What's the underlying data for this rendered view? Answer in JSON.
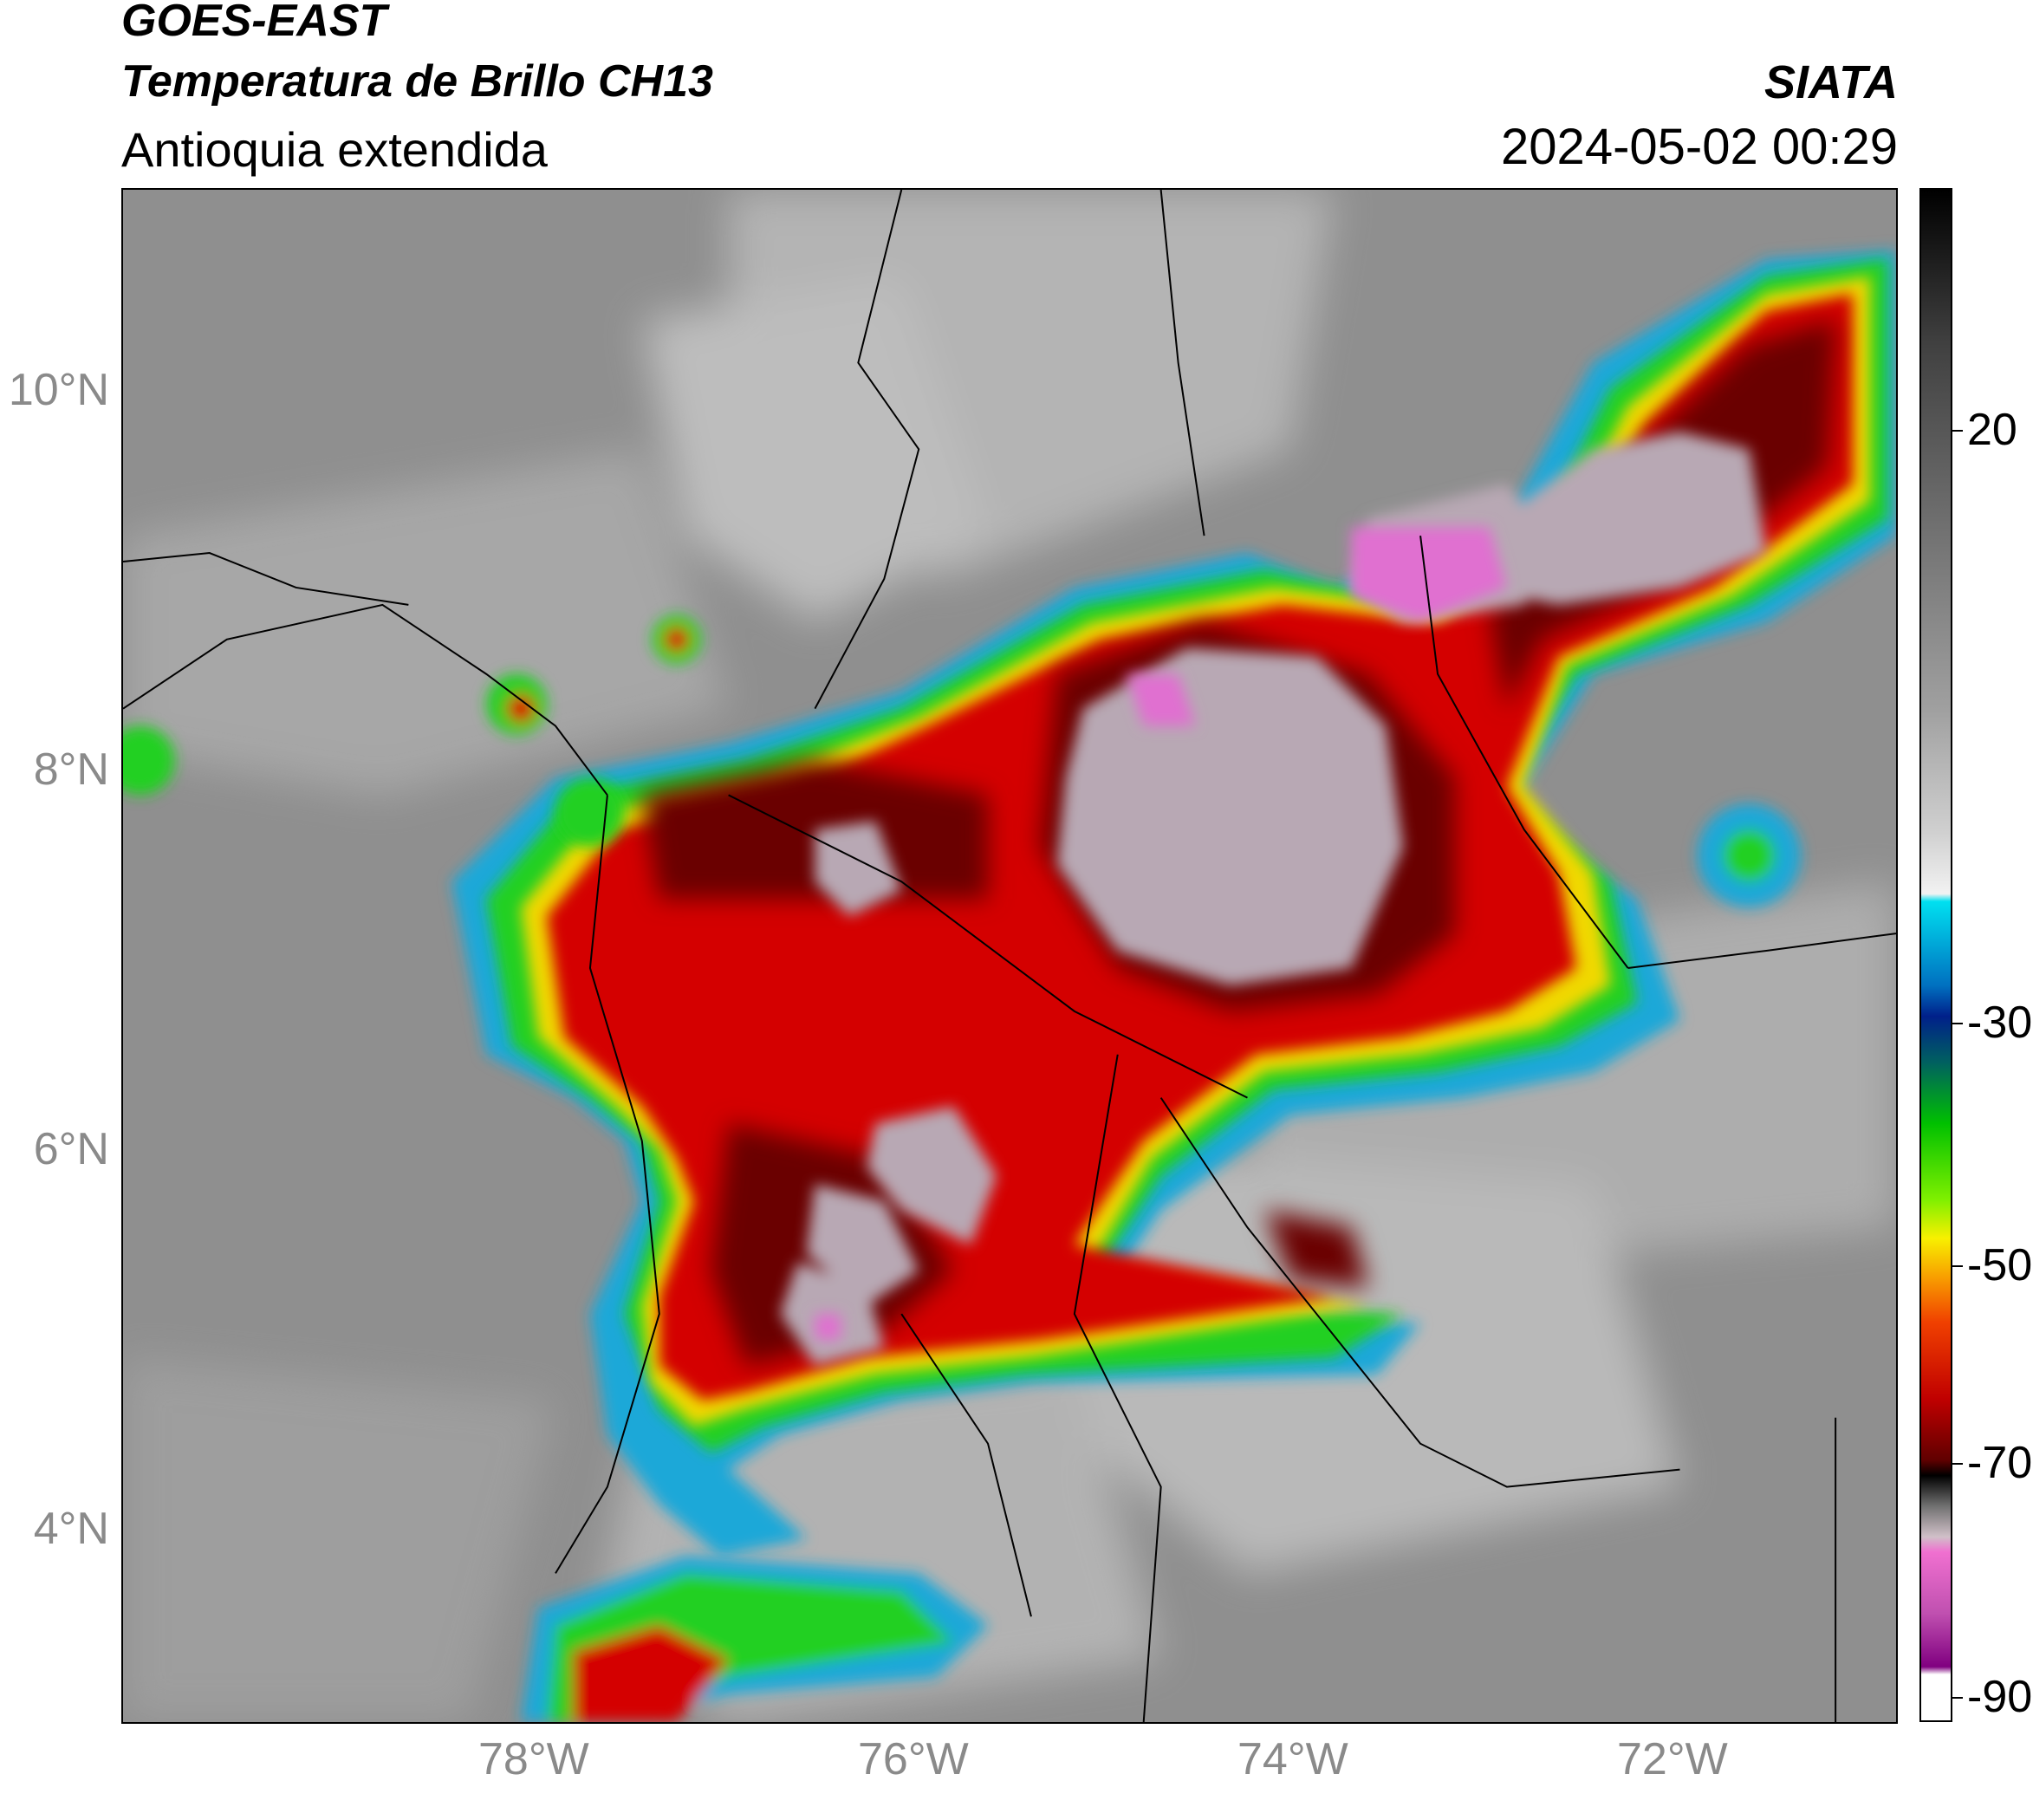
{
  "header": {
    "satellite": "GOES-EAST",
    "product": "Temperatura de Brillo CH13",
    "region": "Antioquia extendida",
    "agency": "SIATA",
    "datetime": "2024-05-02 00:29"
  },
  "map": {
    "lat_ticks": [
      "10°N",
      "8°N",
      "6°N",
      "4°N"
    ],
    "lon_ticks": [
      "78°W",
      "76°W",
      "74°W",
      "72°W"
    ],
    "colors": {
      "background_gray": "#8c8c8c",
      "cloud_white": "#e6e6e6",
      "cold_red": "#c80000",
      "cold_black": "#1a0000",
      "overshoot_pink": "#e060d0",
      "green": "#00d000",
      "cyan": "#00c8e0",
      "yellow": "#f8f000"
    }
  },
  "colorbar": {
    "ticks": [
      "20",
      "-30",
      "-50",
      "-70",
      "-90"
    ],
    "tick_values": [
      20,
      -30,
      -50,
      -70,
      -90
    ],
    "range": [
      -92,
      33
    ]
  }
}
